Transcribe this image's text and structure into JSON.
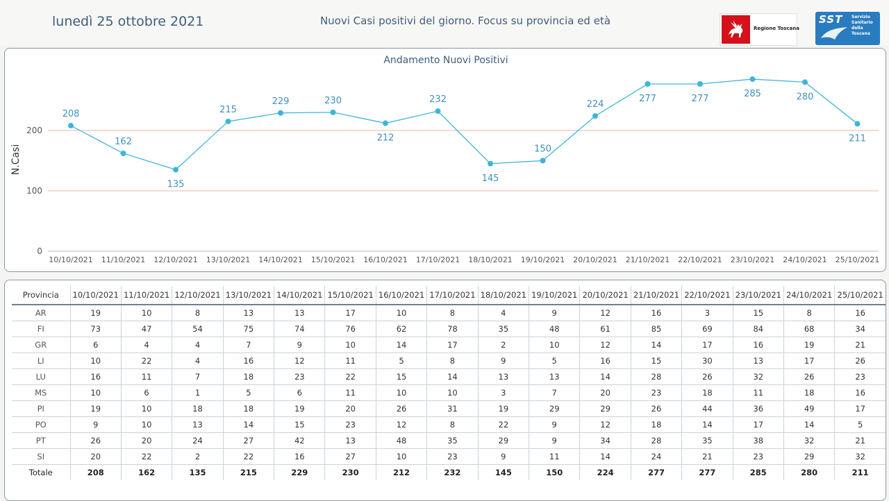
{
  "header": {
    "date": "lunedì 25 ottobre 2021",
    "subtitle": "Nuovi Casi positivi del giorno. Focus su provincia ed età",
    "logo_rt_text": "Regione Toscana",
    "logo_sst_abbr": "SST",
    "logo_sst_lines": [
      "Servizio",
      "Sanitario",
      "della",
      "Toscana"
    ]
  },
  "chart_data": {
    "type": "line",
    "title": "Andamento Nuovi Positivi",
    "ylabel": "N.Casi",
    "xlabel": "",
    "ylim": [
      0,
      300
    ],
    "yticks": [
      0,
      100,
      200
    ],
    "grid": true,
    "line_color": "#3fb4da",
    "grid_color": "#e8b9a8",
    "categories": [
      "10/10/2021",
      "11/10/2021",
      "12/10/2021",
      "13/10/2021",
      "14/10/2021",
      "15/10/2021",
      "16/10/2021",
      "17/10/2021",
      "18/10/2021",
      "19/10/2021",
      "20/10/2021",
      "21/10/2021",
      "22/10/2021",
      "23/10/2021",
      "24/10/2021",
      "25/10/2021"
    ],
    "values": [
      208,
      162,
      135,
      215,
      229,
      230,
      212,
      232,
      145,
      150,
      224,
      277,
      277,
      285,
      280,
      211
    ],
    "label_position": [
      "above",
      "above",
      "below",
      "above",
      "above",
      "above",
      "below",
      "above",
      "below",
      "above",
      "above",
      "below",
      "below",
      "below",
      "below",
      "below"
    ]
  },
  "table": {
    "header_label": "Provincia",
    "rows": [
      {
        "name": "AR",
        "values": [
          19,
          10,
          8,
          13,
          13,
          17,
          10,
          8,
          4,
          9,
          12,
          16,
          3,
          15,
          8,
          16
        ]
      },
      {
        "name": "FI",
        "values": [
          73,
          47,
          54,
          75,
          74,
          76,
          62,
          78,
          35,
          48,
          61,
          85,
          69,
          84,
          68,
          34
        ]
      },
      {
        "name": "GR",
        "values": [
          6,
          4,
          4,
          7,
          9,
          10,
          14,
          17,
          2,
          10,
          12,
          14,
          17,
          16,
          19,
          21
        ]
      },
      {
        "name": "LI",
        "values": [
          10,
          22,
          4,
          16,
          12,
          11,
          5,
          8,
          9,
          5,
          16,
          15,
          30,
          13,
          17,
          26
        ]
      },
      {
        "name": "LU",
        "values": [
          16,
          11,
          7,
          18,
          23,
          22,
          15,
          14,
          13,
          13,
          14,
          28,
          26,
          32,
          26,
          23
        ]
      },
      {
        "name": "MS",
        "values": [
          10,
          6,
          1,
          5,
          6,
          11,
          10,
          10,
          3,
          7,
          20,
          23,
          18,
          11,
          18,
          16
        ]
      },
      {
        "name": "PI",
        "values": [
          19,
          10,
          18,
          18,
          19,
          20,
          26,
          31,
          19,
          29,
          29,
          26,
          44,
          36,
          49,
          17
        ]
      },
      {
        "name": "PO",
        "values": [
          9,
          10,
          13,
          14,
          15,
          23,
          12,
          8,
          22,
          9,
          12,
          18,
          14,
          17,
          14,
          5
        ]
      },
      {
        "name": "PT",
        "values": [
          26,
          20,
          24,
          27,
          42,
          13,
          48,
          35,
          29,
          9,
          34,
          28,
          35,
          38,
          32,
          21
        ]
      },
      {
        "name": "SI",
        "values": [
          20,
          22,
          2,
          22,
          16,
          27,
          10,
          23,
          9,
          11,
          14,
          24,
          21,
          23,
          29,
          32
        ]
      }
    ],
    "total": {
      "name": "Totale",
      "values": [
        208,
        162,
        135,
        215,
        229,
        230,
        212,
        232,
        145,
        150,
        224,
        277,
        277,
        285,
        280,
        211
      ]
    }
  }
}
